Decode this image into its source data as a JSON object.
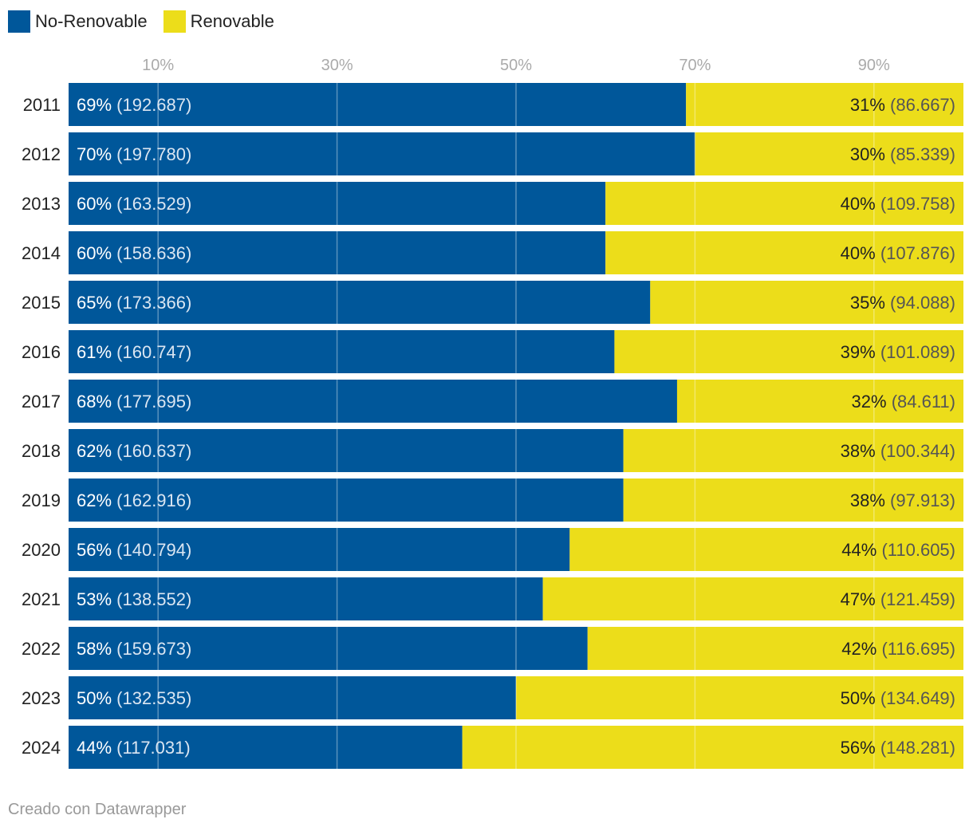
{
  "chart_data": {
    "type": "bar",
    "stacked": "percent",
    "orientation": "horizontal",
    "categories": [
      "2011",
      "2012",
      "2013",
      "2014",
      "2015",
      "2016",
      "2017",
      "2018",
      "2019",
      "2020",
      "2021",
      "2022",
      "2023",
      "2024"
    ],
    "series": [
      {
        "name": "No-Renovable",
        "color": "#00579a",
        "percent": [
          69,
          70,
          60,
          60,
          65,
          61,
          68,
          62,
          62,
          56,
          53,
          58,
          50,
          44
        ],
        "values": [
          "192.687",
          "197.780",
          "163.529",
          "158.636",
          "173.366",
          "160.747",
          "177.695",
          "160.637",
          "162.916",
          "140.794",
          "138.552",
          "159.673",
          "132.535",
          "117.031"
        ]
      },
      {
        "name": "Renovable",
        "color": "#ecdd1a",
        "percent": [
          31,
          30,
          40,
          40,
          35,
          39,
          32,
          38,
          38,
          44,
          47,
          42,
          50,
          56
        ],
        "values": [
          "86.667",
          "85.339",
          "109.758",
          "107.876",
          "94.088",
          "101.089",
          "84.611",
          "100.344",
          "97.913",
          "110.605",
          "121.459",
          "116.695",
          "134.649",
          "148.281"
        ]
      }
    ],
    "xaxis": {
      "ticks": [
        10,
        30,
        50,
        70,
        90
      ],
      "tick_labels": [
        "10%",
        "30%",
        "50%",
        "70%",
        "90%"
      ],
      "range": [
        0,
        100
      ],
      "position": "top"
    },
    "grid": true,
    "legend": "top-left"
  },
  "footer": "Creado con Datawrapper"
}
